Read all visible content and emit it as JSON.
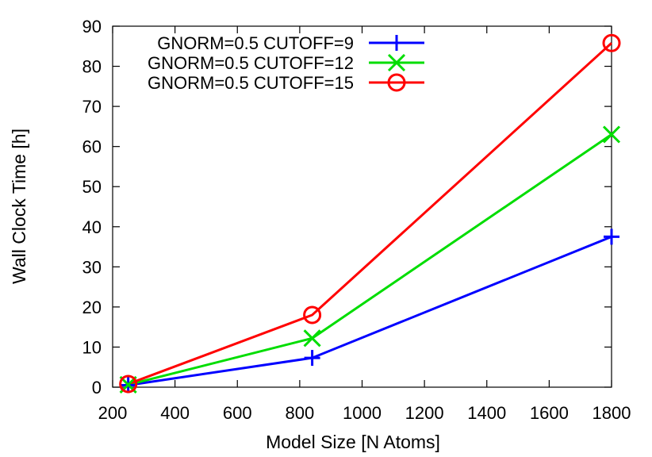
{
  "chart_data": {
    "type": "line",
    "xlabel": "Model Size [N Atoms]",
    "ylabel": "Wall Clock Time [h]",
    "xlim": [
      200,
      1800
    ],
    "ylim": [
      0,
      90
    ],
    "xticks": [
      200,
      400,
      600,
      800,
      1000,
      1200,
      1400,
      1600,
      1800
    ],
    "yticks": [
      0,
      10,
      20,
      30,
      40,
      50,
      60,
      70,
      80,
      90
    ],
    "grid": false,
    "legend_position": "top-left",
    "series": [
      {
        "name": "GNORM=0.5 CUTOFF=9",
        "color": "#0000ff",
        "marker": "plus",
        "x": [
          250,
          840,
          1800
        ],
        "y": [
          0.5,
          7.3,
          37.5
        ]
      },
      {
        "name": "GNORM=0.5 CUTOFF=12",
        "color": "#00dd00",
        "marker": "x",
        "x": [
          250,
          840,
          1800
        ],
        "y": [
          0.6,
          12.2,
          63.0
        ]
      },
      {
        "name": "GNORM=0.5 CUTOFF=15",
        "color": "#ff0000",
        "marker": "circle",
        "x": [
          250,
          840,
          1800
        ],
        "y": [
          0.8,
          18.0,
          85.8
        ]
      }
    ]
  }
}
